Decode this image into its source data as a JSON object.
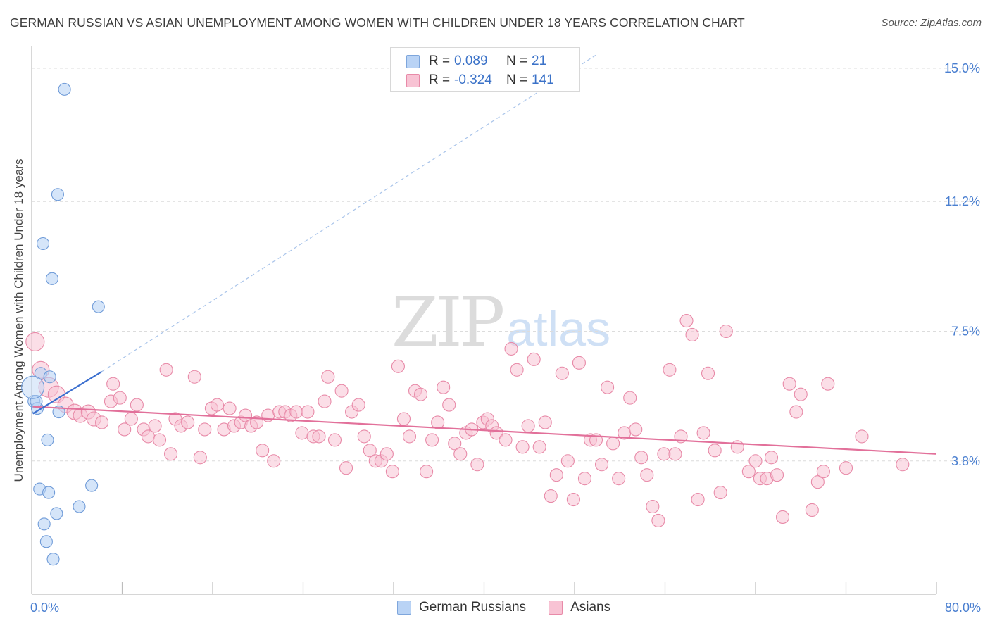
{
  "header": {
    "title": "GERMAN RUSSIAN VS ASIAN UNEMPLOYMENT AMONG WOMEN WITH CHILDREN UNDER 18 YEARS CORRELATION CHART",
    "source": "Source: ZipAtlas.com"
  },
  "watermark": {
    "zip": "ZIP",
    "atlas": "atlas"
  },
  "legend": {
    "rows": [
      {
        "r_label": "R =",
        "r_value": "0.089",
        "n_label": "N =",
        "n_value": "21",
        "color": "#b9d3f5",
        "border": "#7ea6dc"
      },
      {
        "r_label": "R =",
        "r_value": "-0.324",
        "n_label": "N =",
        "n_value": "141",
        "color": "#f8c3d4",
        "border": "#e88aa8"
      }
    ]
  },
  "bottom_legend": {
    "items": [
      {
        "label": "German Russians",
        "color": "#b9d3f5",
        "border": "#7ea6dc"
      },
      {
        "label": "Asians",
        "color": "#f8c3d4",
        "border": "#e88aa8"
      }
    ]
  },
  "chart_data": {
    "type": "scatter",
    "title": "GERMAN RUSSIAN VS ASIAN UNEMPLOYMENT AMONG WOMEN WITH CHILDREN UNDER 18 YEARS CORRELATION CHART",
    "xlabel": "",
    "ylabel": "Unemployment Among Women with Children Under 18 years",
    "xlim": [
      0,
      80
    ],
    "ylim": [
      0,
      15.8
    ],
    "x_tick_labels": [
      {
        "value": 0,
        "label": "0.0%"
      },
      {
        "value": 80,
        "label": "80.0%"
      }
    ],
    "y_tick_labels": [
      {
        "value": 3.8,
        "label": "3.8%"
      },
      {
        "value": 7.5,
        "label": "7.5%"
      },
      {
        "value": 11.2,
        "label": "11.2%"
      },
      {
        "value": 15.0,
        "label": "15.0%"
      }
    ],
    "y_gridlines": [
      3.8,
      7.5,
      11.2,
      15.0
    ],
    "x_minor_ticks": [
      8,
      16,
      24,
      32,
      40,
      48,
      56,
      64,
      72,
      80
    ],
    "series": [
      {
        "name": "German Russians",
        "color": "#b9d3f5",
        "stroke": "#6f9bd8",
        "trend": {
          "x": [
            0.1,
            6.2
          ],
          "y": [
            5.15,
            6.35
          ],
          "color": "#3b6fcf",
          "dashed_extension_to": [
            50,
            15.4
          ]
        },
        "points": [
          {
            "x": 2.9,
            "y": 14.4
          },
          {
            "x": 2.3,
            "y": 11.4
          },
          {
            "x": 1.0,
            "y": 10.0
          },
          {
            "x": 1.8,
            "y": 9.0
          },
          {
            "x": 5.9,
            "y": 8.2
          },
          {
            "x": 0.8,
            "y": 6.3
          },
          {
            "x": 1.6,
            "y": 6.2
          },
          {
            "x": 0.2,
            "y": 5.5
          },
          {
            "x": 0.5,
            "y": 5.3
          },
          {
            "x": 0.4,
            "y": 5.5
          },
          {
            "x": 2.4,
            "y": 5.2
          },
          {
            "x": 1.4,
            "y": 4.4
          },
          {
            "x": 5.3,
            "y": 3.1
          },
          {
            "x": 0.7,
            "y": 3.0
          },
          {
            "x": 1.5,
            "y": 2.9
          },
          {
            "x": 4.2,
            "y": 2.5
          },
          {
            "x": 2.2,
            "y": 2.3
          },
          {
            "x": 1.1,
            "y": 2.0
          },
          {
            "x": 1.3,
            "y": 1.5
          },
          {
            "x": 1.9,
            "y": 1.0
          },
          {
            "x": 0.1,
            "y": 5.9,
            "big": true
          }
        ]
      },
      {
        "name": "Asians",
        "color": "#f8c3d4",
        "stroke": "#e88aa8",
        "trend": {
          "x": [
            0.1,
            80
          ],
          "y": [
            5.35,
            4.0
          ],
          "color": "#e2709a"
        },
        "points": [
          {
            "x": 0.3,
            "y": 7.2,
            "r": 13
          },
          {
            "x": 0.8,
            "y": 6.4,
            "r": 12
          },
          {
            "x": 1.5,
            "y": 5.9,
            "r": 14
          },
          {
            "x": 2.2,
            "y": 5.7,
            "r": 12
          },
          {
            "x": 3.0,
            "y": 5.4,
            "r": 11
          },
          {
            "x": 3.8,
            "y": 5.2,
            "r": 11
          },
          {
            "x": 4.3,
            "y": 5.1,
            "r": 10
          },
          {
            "x": 5.0,
            "y": 5.2,
            "r": 10
          },
          {
            "x": 5.5,
            "y": 5.0,
            "r": 10
          },
          {
            "x": 6.2,
            "y": 4.9
          },
          {
            "x": 7.2,
            "y": 6.0
          },
          {
            "x": 7.0,
            "y": 5.5
          },
          {
            "x": 7.8,
            "y": 5.6
          },
          {
            "x": 8.2,
            "y": 4.7
          },
          {
            "x": 8.8,
            "y": 5.0
          },
          {
            "x": 9.3,
            "y": 5.4
          },
          {
            "x": 9.9,
            "y": 4.7
          },
          {
            "x": 10.3,
            "y": 4.5
          },
          {
            "x": 10.9,
            "y": 4.8
          },
          {
            "x": 11.3,
            "y": 4.4
          },
          {
            "x": 11.9,
            "y": 6.4
          },
          {
            "x": 12.3,
            "y": 4.0
          },
          {
            "x": 12.7,
            "y": 5.0
          },
          {
            "x": 13.2,
            "y": 4.8
          },
          {
            "x": 13.8,
            "y": 4.9
          },
          {
            "x": 14.4,
            "y": 6.2
          },
          {
            "x": 14.9,
            "y": 3.9
          },
          {
            "x": 15.3,
            "y": 4.7
          },
          {
            "x": 15.9,
            "y": 5.3
          },
          {
            "x": 16.4,
            "y": 5.4
          },
          {
            "x": 17.0,
            "y": 4.7
          },
          {
            "x": 17.5,
            "y": 5.3
          },
          {
            "x": 17.9,
            "y": 4.8
          },
          {
            "x": 18.5,
            "y": 4.9
          },
          {
            "x": 18.9,
            "y": 5.1
          },
          {
            "x": 19.4,
            "y": 4.8
          },
          {
            "x": 19.9,
            "y": 4.9
          },
          {
            "x": 20.4,
            "y": 4.1
          },
          {
            "x": 20.9,
            "y": 5.1
          },
          {
            "x": 21.4,
            "y": 3.8
          },
          {
            "x": 21.9,
            "y": 5.2
          },
          {
            "x": 22.4,
            "y": 5.2
          },
          {
            "x": 22.9,
            "y": 5.1
          },
          {
            "x": 23.4,
            "y": 5.2
          },
          {
            "x": 23.9,
            "y": 4.6
          },
          {
            "x": 24.4,
            "y": 5.2
          },
          {
            "x": 24.9,
            "y": 4.5
          },
          {
            "x": 25.4,
            "y": 4.5
          },
          {
            "x": 25.9,
            "y": 5.5
          },
          {
            "x": 26.2,
            "y": 6.2
          },
          {
            "x": 26.8,
            "y": 4.4
          },
          {
            "x": 27.4,
            "y": 5.8
          },
          {
            "x": 27.8,
            "y": 3.6
          },
          {
            "x": 28.3,
            "y": 5.2
          },
          {
            "x": 28.9,
            "y": 5.4
          },
          {
            "x": 29.4,
            "y": 4.5
          },
          {
            "x": 29.9,
            "y": 4.1
          },
          {
            "x": 30.4,
            "y": 3.8
          },
          {
            "x": 30.9,
            "y": 3.8
          },
          {
            "x": 31.4,
            "y": 4.0
          },
          {
            "x": 31.9,
            "y": 3.5
          },
          {
            "x": 32.4,
            "y": 6.5
          },
          {
            "x": 32.9,
            "y": 5.0
          },
          {
            "x": 33.4,
            "y": 4.5
          },
          {
            "x": 33.9,
            "y": 5.8
          },
          {
            "x": 34.4,
            "y": 5.7
          },
          {
            "x": 34.9,
            "y": 3.5
          },
          {
            "x": 35.4,
            "y": 4.4
          },
          {
            "x": 35.9,
            "y": 4.9
          },
          {
            "x": 36.4,
            "y": 5.9
          },
          {
            "x": 36.9,
            "y": 5.4
          },
          {
            "x": 37.4,
            "y": 4.3
          },
          {
            "x": 37.9,
            "y": 4.0
          },
          {
            "x": 38.4,
            "y": 4.6
          },
          {
            "x": 38.9,
            "y": 4.7
          },
          {
            "x": 39.4,
            "y": 3.7
          },
          {
            "x": 39.9,
            "y": 4.9
          },
          {
            "x": 40.3,
            "y": 5.0
          },
          {
            "x": 40.7,
            "y": 4.8
          },
          {
            "x": 41.1,
            "y": 4.6
          },
          {
            "x": 41.9,
            "y": 4.4
          },
          {
            "x": 42.4,
            "y": 7.0
          },
          {
            "x": 42.9,
            "y": 6.4
          },
          {
            "x": 43.4,
            "y": 4.2
          },
          {
            "x": 43.9,
            "y": 4.8
          },
          {
            "x": 44.4,
            "y": 6.7
          },
          {
            "x": 44.9,
            "y": 4.2
          },
          {
            "x": 45.4,
            "y": 4.9
          },
          {
            "x": 45.9,
            "y": 2.8
          },
          {
            "x": 46.4,
            "y": 3.4
          },
          {
            "x": 46.9,
            "y": 6.3
          },
          {
            "x": 47.4,
            "y": 3.8
          },
          {
            "x": 47.9,
            "y": 2.7
          },
          {
            "x": 48.4,
            "y": 6.6
          },
          {
            "x": 48.9,
            "y": 3.3
          },
          {
            "x": 49.4,
            "y": 4.4
          },
          {
            "x": 49.9,
            "y": 4.4
          },
          {
            "x": 50.4,
            "y": 3.7
          },
          {
            "x": 50.9,
            "y": 5.9
          },
          {
            "x": 51.4,
            "y": 4.3
          },
          {
            "x": 51.9,
            "y": 3.3
          },
          {
            "x": 52.4,
            "y": 4.6
          },
          {
            "x": 52.9,
            "y": 5.6
          },
          {
            "x": 53.4,
            "y": 4.7
          },
          {
            "x": 53.9,
            "y": 3.9
          },
          {
            "x": 54.4,
            "y": 3.4
          },
          {
            "x": 54.9,
            "y": 2.5
          },
          {
            "x": 55.4,
            "y": 2.1
          },
          {
            "x": 55.9,
            "y": 4.0
          },
          {
            "x": 56.4,
            "y": 6.4
          },
          {
            "x": 56.9,
            "y": 4.0
          },
          {
            "x": 57.4,
            "y": 4.5
          },
          {
            "x": 57.9,
            "y": 7.8
          },
          {
            "x": 58.4,
            "y": 7.4
          },
          {
            "x": 58.9,
            "y": 2.7
          },
          {
            "x": 59.4,
            "y": 4.6
          },
          {
            "x": 59.8,
            "y": 6.3
          },
          {
            "x": 60.4,
            "y": 4.1
          },
          {
            "x": 60.9,
            "y": 2.9
          },
          {
            "x": 61.4,
            "y": 7.5
          },
          {
            "x": 62.4,
            "y": 4.2
          },
          {
            "x": 63.4,
            "y": 3.5
          },
          {
            "x": 64.0,
            "y": 3.8
          },
          {
            "x": 64.4,
            "y": 3.3
          },
          {
            "x": 65.0,
            "y": 3.3
          },
          {
            "x": 65.4,
            "y": 3.9
          },
          {
            "x": 65.9,
            "y": 3.4
          },
          {
            "x": 66.4,
            "y": 2.2
          },
          {
            "x": 67.0,
            "y": 6.0
          },
          {
            "x": 67.6,
            "y": 5.2
          },
          {
            "x": 68.0,
            "y": 5.7
          },
          {
            "x": 69.0,
            "y": 2.4
          },
          {
            "x": 69.5,
            "y": 3.2
          },
          {
            "x": 70.0,
            "y": 3.5
          },
          {
            "x": 70.4,
            "y": 6.0
          },
          {
            "x": 72.0,
            "y": 3.6
          },
          {
            "x": 73.4,
            "y": 4.5
          },
          {
            "x": 77.0,
            "y": 3.7
          }
        ]
      }
    ]
  }
}
